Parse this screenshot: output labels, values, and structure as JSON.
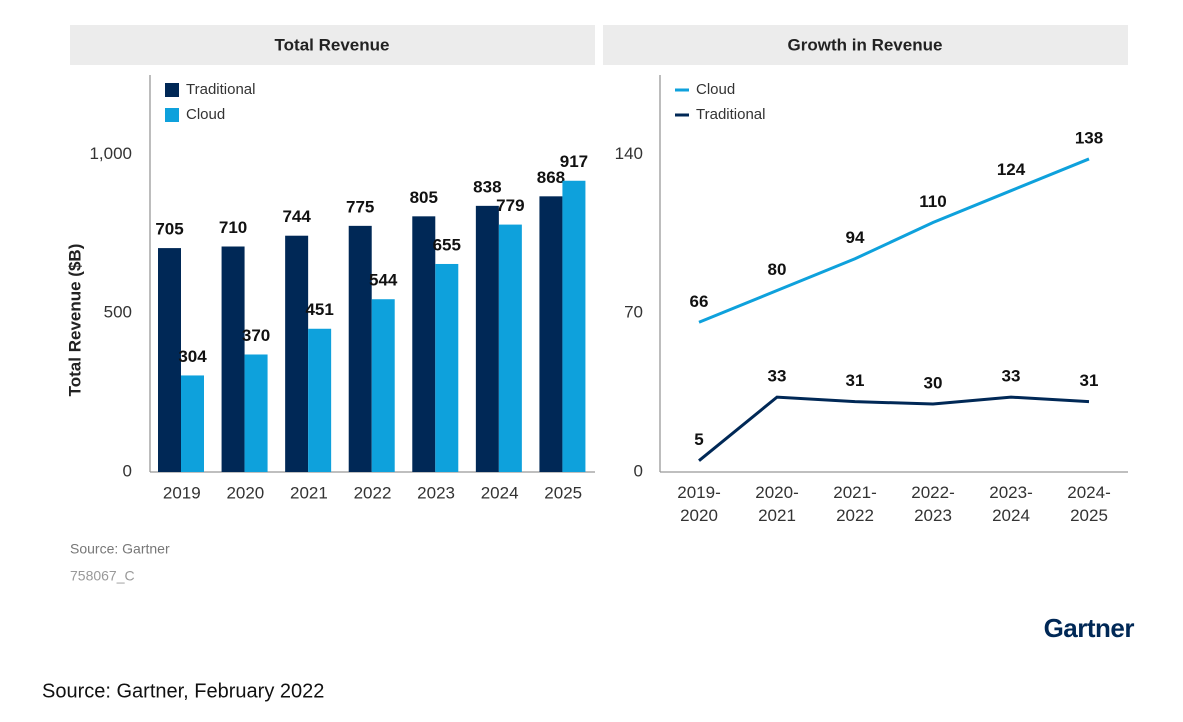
{
  "chart_data": [
    {
      "type": "bar",
      "title": "Total Revenue",
      "y_label": "Total Revenue ($B)",
      "categories": [
        "2019",
        "2020",
        "2021",
        "2022",
        "2023",
        "2024",
        "2025"
      ],
      "series": [
        {
          "name": "Traditional",
          "color": "#002856",
          "values": [
            705,
            710,
            744,
            775,
            805,
            838,
            868
          ]
        },
        {
          "name": "Cloud",
          "color": "#0ea1dc",
          "values": [
            304,
            370,
            451,
            544,
            655,
            779,
            917
          ]
        }
      ],
      "ylim": [
        0,
        1250
      ],
      "yticks": [
        0,
        500,
        {
          "value": 1000,
          "label": "1,000"
        }
      ],
      "legend": "upper left"
    },
    {
      "type": "line",
      "title": "Growth in Revenue",
      "categories": [
        "2019-2020",
        "2020-2021",
        "2021-2022",
        "2022-2023",
        "2023-2024",
        "2024-2025"
      ],
      "series": [
        {
          "name": "Cloud",
          "color": "#0ea1dc",
          "values": [
            66,
            80,
            94,
            110,
            124,
            138
          ]
        },
        {
          "name": "Traditional",
          "color": "#002856",
          "values": [
            5,
            33,
            31,
            30,
            33,
            31
          ]
        }
      ],
      "ylim": [
        0,
        175
      ],
      "yticks": [
        0,
        70,
        140
      ],
      "legend": "upper left"
    }
  ],
  "footer": {
    "source": "Source: Gartner",
    "code": "758067_C",
    "logo": "Gartner",
    "caption": "Source: Gartner, February 2022"
  }
}
